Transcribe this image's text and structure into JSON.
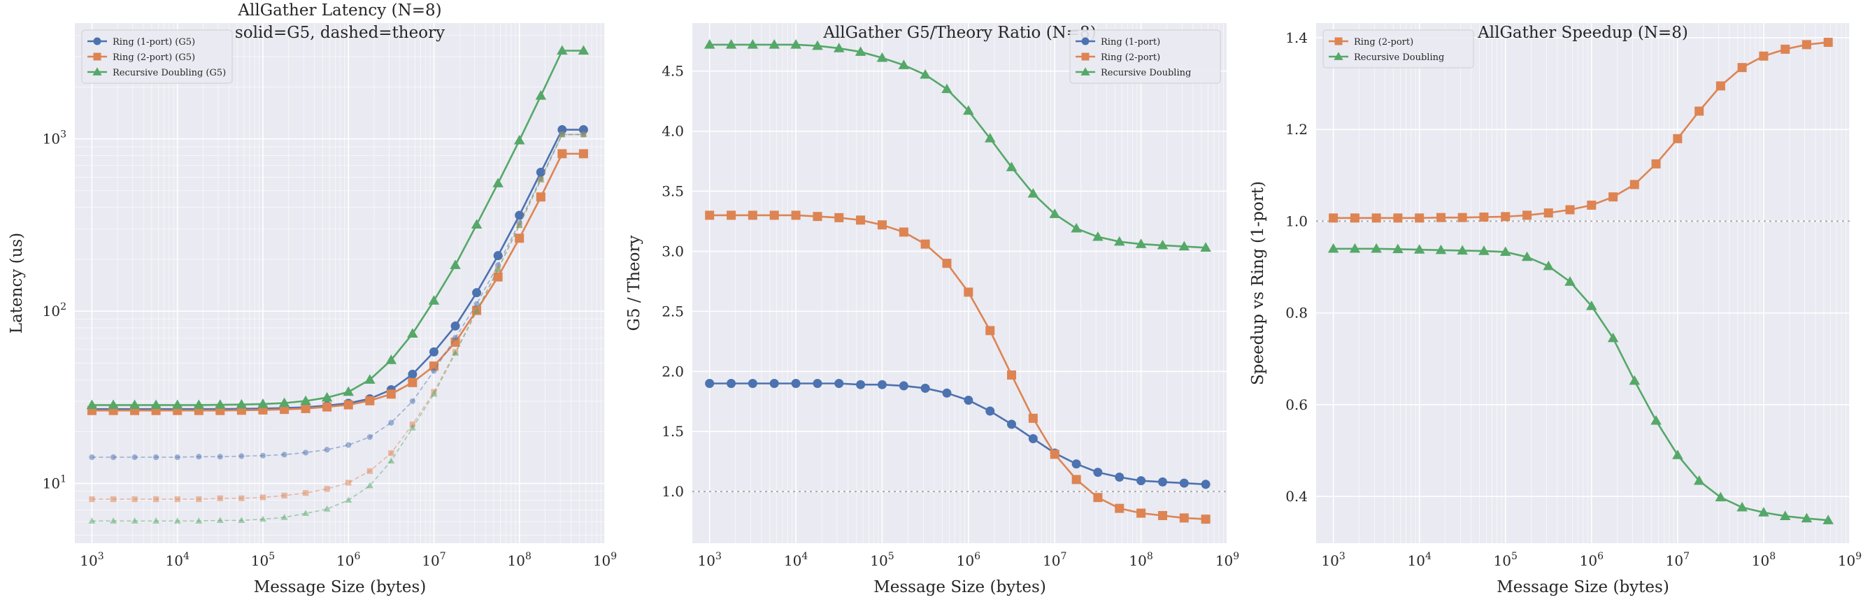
{
  "colors": {
    "ring1": "#4c72b0",
    "ring2": "#dd8452",
    "rd": "#55a868"
  },
  "chart_data": [
    {
      "type": "line",
      "title": "AllGather Latency (N=8)",
      "subtitle": "solid=G5, dashed=theory",
      "xlabel": "Message Size (bytes)",
      "ylabel": "Latency (us)",
      "xscale": "log",
      "yscale": "log",
      "xlim": [
        631,
        1000000000
      ],
      "ylim": [
        4.5,
        4700
      ],
      "xticks": [
        {
          "v": 1000,
          "e": "3"
        },
        {
          "v": 10000,
          "e": "4"
        },
        {
          "v": 100000,
          "e": "5"
        },
        {
          "v": 1000000,
          "e": "6"
        },
        {
          "v": 10000000,
          "e": "7"
        },
        {
          "v": 100000000,
          "e": "8"
        },
        {
          "v": 1000000000,
          "e": "9"
        }
      ],
      "yticks": [
        {
          "v": 10,
          "e": "1"
        },
        {
          "v": 100,
          "e": "2"
        },
        {
          "v": 1000,
          "e": "3"
        }
      ],
      "tick_base": "10",
      "x": [
        1000,
        1780,
        3160,
        5620,
        10000,
        17800,
        31600,
        56200,
        100000,
        178000,
        316000,
        562000,
        1000000,
        1780000,
        3160000,
        5620000,
        10000000,
        17800000,
        31600000,
        56200000,
        100000000,
        178000000,
        316000000,
        562000000
      ],
      "legend": "top-left",
      "grid": true,
      "series": [
        {
          "name": "Ring (1-port) (G5)",
          "color": "#4c72b0",
          "marker": "circle",
          "dash": false,
          "legend": true,
          "values": [
            27,
            27,
            27,
            27,
            27,
            27,
            27,
            27.1,
            27.2,
            27.4,
            27.7,
            28.3,
            29.2,
            31,
            35,
            43,
            58,
            82,
            128,
            210,
            360,
            640,
            1130,
            1130
          ]
        },
        {
          "name": "Ring (2-port) (G5)",
          "color": "#dd8452",
          "marker": "square",
          "dash": false,
          "legend": true,
          "values": [
            26.5,
            26.5,
            26.5,
            26.5,
            26.5,
            26.5,
            26.5,
            26.6,
            26.7,
            26.9,
            27.2,
            27.8,
            28.6,
            30.2,
            33,
            38.5,
            48,
            66,
            101,
            158,
            265,
            460,
            820,
            820
          ]
        },
        {
          "name": "Recursive Doubling (G5)",
          "color": "#55a868",
          "marker": "triangle",
          "dash": false,
          "legend": true,
          "values": [
            28.5,
            28.5,
            28.5,
            28.5,
            28.5,
            28.5,
            28.6,
            28.7,
            28.9,
            29.3,
            30.1,
            31.5,
            34,
            40,
            52,
            74,
            115,
            185,
            318,
            552,
            980,
            1780,
            3250,
            3250
          ]
        },
        {
          "name": "Ring (1-port) theory",
          "color": "#4c72b0",
          "marker": "circle",
          "dash": true,
          "legend": false,
          "values": [
            14.2,
            14.2,
            14.2,
            14.2,
            14.2,
            14.3,
            14.3,
            14.4,
            14.5,
            14.7,
            15.1,
            15.7,
            16.7,
            18.6,
            22.5,
            30,
            45,
            70,
            110,
            185,
            325,
            590,
            1060,
            1060
          ]
        },
        {
          "name": "Ring (2-port) theory",
          "color": "#dd8452",
          "marker": "square",
          "dash": true,
          "legend": false,
          "values": [
            8.1,
            8.1,
            8.1,
            8.1,
            8.1,
            8.1,
            8.2,
            8.2,
            8.3,
            8.5,
            8.8,
            9.3,
            10.1,
            11.8,
            15,
            22,
            34,
            58,
            100,
            175,
            315,
            580,
            1060,
            1060
          ]
        },
        {
          "name": "Recursive Doubling theory",
          "color": "#55a868",
          "marker": "triangle",
          "dash": true,
          "legend": false,
          "values": [
            6.05,
            6.05,
            6.05,
            6.05,
            6.05,
            6.05,
            6.1,
            6.1,
            6.2,
            6.35,
            6.7,
            7.1,
            8,
            9.7,
            13.5,
            21,
            33,
            57,
            100,
            175,
            315,
            580,
            1060,
            1060
          ]
        }
      ]
    },
    {
      "type": "line",
      "title": "AllGather G5/Theory Ratio (N=8)",
      "xlabel": "Message Size (bytes)",
      "ylabel": "G5 / Theory",
      "xscale": "log",
      "yscale": "linear",
      "xlim": [
        631,
        1000000000
      ],
      "ylim": [
        0.57,
        4.9
      ],
      "xticks": [
        {
          "v": 1000,
          "e": "3"
        },
        {
          "v": 10000,
          "e": "4"
        },
        {
          "v": 100000,
          "e": "5"
        },
        {
          "v": 1000000,
          "e": "6"
        },
        {
          "v": 10000000,
          "e": "7"
        },
        {
          "v": 100000000,
          "e": "8"
        },
        {
          "v": 1000000000,
          "e": "9"
        }
      ],
      "yticks": [
        {
          "v": 1.0,
          "label": "1.0"
        },
        {
          "v": 1.5,
          "label": "1.5"
        },
        {
          "v": 2.0,
          "label": "2.0"
        },
        {
          "v": 2.5,
          "label": "2.5"
        },
        {
          "v": 3.0,
          "label": "3.0"
        },
        {
          "v": 3.5,
          "label": "3.5"
        },
        {
          "v": 4.0,
          "label": "4.0"
        },
        {
          "v": 4.5,
          "label": "4.5"
        }
      ],
      "tick_base": "10",
      "reference_y": 1.0,
      "x": [
        1000,
        1780,
        3160,
        5620,
        10000,
        17800,
        31600,
        56200,
        100000,
        178000,
        316000,
        562000,
        1000000,
        1780000,
        3160000,
        5620000,
        10000000,
        17800000,
        31600000,
        56200000,
        100000000,
        178000000,
        316000000,
        562000000
      ],
      "legend": "top-right",
      "grid": true,
      "series": [
        {
          "name": "Ring (1-port)",
          "color": "#4c72b0",
          "marker": "circle",
          "dash": false,
          "legend": true,
          "values": [
            1.9,
            1.9,
            1.9,
            1.9,
            1.9,
            1.9,
            1.9,
            1.89,
            1.89,
            1.88,
            1.86,
            1.82,
            1.76,
            1.67,
            1.56,
            1.44,
            1.32,
            1.23,
            1.16,
            1.12,
            1.09,
            1.08,
            1.07,
            1.06
          ]
        },
        {
          "name": "Ring (2-port)",
          "color": "#dd8452",
          "marker": "square",
          "dash": false,
          "legend": true,
          "values": [
            3.3,
            3.3,
            3.3,
            3.3,
            3.3,
            3.29,
            3.28,
            3.26,
            3.22,
            3.16,
            3.06,
            2.9,
            2.66,
            2.34,
            1.97,
            1.61,
            1.31,
            1.1,
            0.95,
            0.86,
            0.82,
            0.8,
            0.78,
            0.77
          ]
        },
        {
          "name": "Recursive Doubling",
          "color": "#55a868",
          "marker": "triangle",
          "dash": false,
          "legend": true,
          "values": [
            4.72,
            4.72,
            4.72,
            4.72,
            4.72,
            4.71,
            4.69,
            4.66,
            4.61,
            4.55,
            4.47,
            4.35,
            4.17,
            3.94,
            3.7,
            3.48,
            3.31,
            3.19,
            3.12,
            3.08,
            3.06,
            3.05,
            3.04,
            3.03
          ]
        }
      ]
    },
    {
      "type": "line",
      "title": "AllGather Speedup (N=8)",
      "xlabel": "Message Size (bytes)",
      "ylabel": "Speedup vs Ring (1-port)",
      "xscale": "log",
      "yscale": "linear",
      "xlim": [
        631,
        1000000000
      ],
      "ylim": [
        0.298,
        1.432
      ],
      "xticks": [
        {
          "v": 1000,
          "e": "3"
        },
        {
          "v": 10000,
          "e": "4"
        },
        {
          "v": 100000,
          "e": "5"
        },
        {
          "v": 1000000,
          "e": "6"
        },
        {
          "v": 10000000,
          "e": "7"
        },
        {
          "v": 100000000,
          "e": "8"
        },
        {
          "v": 1000000000,
          "e": "9"
        }
      ],
      "yticks": [
        {
          "v": 0.4,
          "label": "0.4"
        },
        {
          "v": 0.6,
          "label": "0.6"
        },
        {
          "v": 0.8,
          "label": "0.8"
        },
        {
          "v": 1.0,
          "label": "1.0"
        },
        {
          "v": 1.2,
          "label": "1.2"
        },
        {
          "v": 1.4,
          "label": "1.4"
        }
      ],
      "tick_base": "10",
      "reference_y": 1.0,
      "x": [
        1000,
        1780,
        3160,
        5620,
        10000,
        17800,
        31600,
        56200,
        100000,
        178000,
        316000,
        562000,
        1000000,
        1780000,
        3160000,
        5620000,
        10000000,
        17800000,
        31600000,
        56200000,
        100000000,
        178000000,
        316000000,
        562000000
      ],
      "legend": "top-left",
      "grid": true,
      "series": [
        {
          "name": "Ring (2-port)",
          "color": "#dd8452",
          "marker": "square",
          "dash": false,
          "legend": true,
          "values": [
            1.007,
            1.007,
            1.007,
            1.007,
            1.007,
            1.008,
            1.008,
            1.009,
            1.01,
            1.013,
            1.018,
            1.025,
            1.035,
            1.053,
            1.08,
            1.125,
            1.18,
            1.24,
            1.295,
            1.335,
            1.36,
            1.375,
            1.385,
            1.39
          ]
        },
        {
          "name": "Recursive Doubling",
          "color": "#55a868",
          "marker": "triangle",
          "dash": false,
          "legend": true,
          "values": [
            0.94,
            0.94,
            0.94,
            0.939,
            0.938,
            0.937,
            0.936,
            0.935,
            0.933,
            0.922,
            0.902,
            0.868,
            0.815,
            0.745,
            0.652,
            0.565,
            0.49,
            0.434,
            0.398,
            0.376,
            0.365,
            0.357,
            0.352,
            0.348
          ]
        }
      ]
    }
  ]
}
